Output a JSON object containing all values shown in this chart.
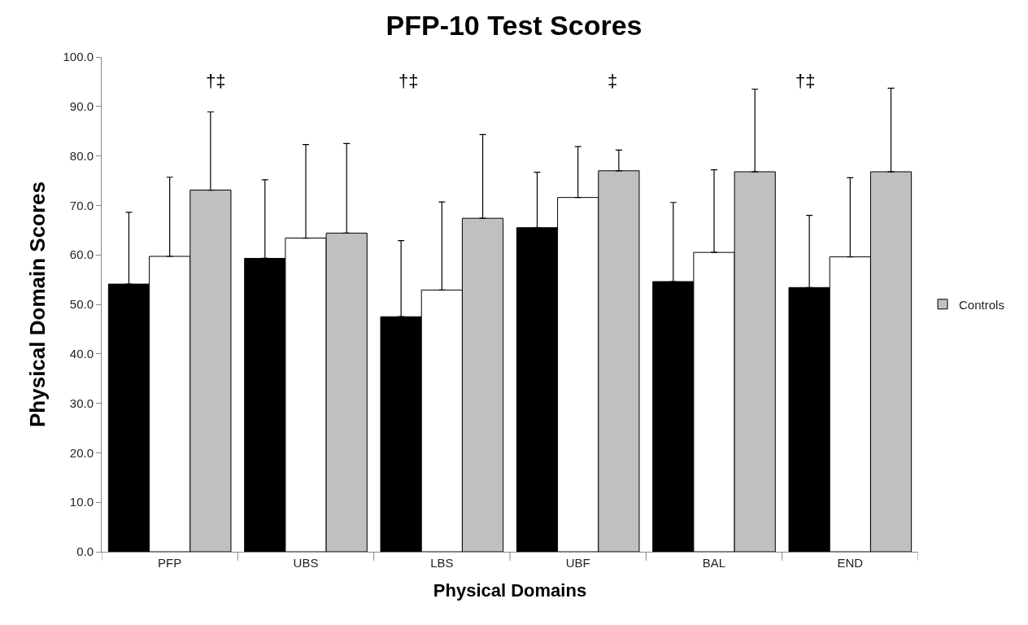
{
  "chart_data": {
    "type": "bar",
    "title": "PFP-10 Test Scores",
    "xlabel": "Physical Domains",
    "ylabel": "Physical Domain Scores",
    "categories": [
      "PFP",
      "UBS",
      "LBS",
      "UBF",
      "BAL",
      "END"
    ],
    "series": [
      {
        "color": "#000000",
        "values": [
          54.1,
          59.3,
          47.5,
          65.5,
          54.6,
          53.4
        ],
        "errors": [
          [
            54.1,
            68.6
          ],
          [
            59.3,
            75.2
          ],
          [
            47.5,
            62.9
          ],
          [
            65.5,
            76.7
          ],
          [
            54.6,
            70.6
          ],
          [
            53.4,
            68.0
          ]
        ]
      },
      {
        "color": "#ffffff",
        "values": [
          59.7,
          63.4,
          52.9,
          71.6,
          60.5,
          59.6
        ],
        "errors": [
          [
            59.7,
            75.7
          ],
          [
            63.4,
            82.3
          ],
          [
            52.9,
            70.7
          ],
          [
            71.6,
            81.9
          ],
          [
            60.5,
            77.2
          ],
          [
            59.6,
            75.6
          ]
        ]
      },
      {
        "name": "Controls",
        "color": "#c0c0c0",
        "values": [
          73.1,
          64.4,
          67.4,
          77.0,
          76.8,
          76.8
        ],
        "errors": [
          [
            73.1,
            88.9
          ],
          [
            64.4,
            82.5
          ],
          [
            67.4,
            84.3
          ],
          [
            77.0,
            81.2
          ],
          [
            76.8,
            93.5
          ],
          [
            76.8,
            93.7
          ]
        ]
      }
    ],
    "ylim": [
      0,
      100
    ],
    "yticks": [
      {
        "value": 0,
        "label": "0.0"
      },
      {
        "value": 10,
        "label": "10.0"
      },
      {
        "value": 20,
        "label": "20.0"
      },
      {
        "value": 30,
        "label": "30.0"
      },
      {
        "value": 40,
        "label": "40.0"
      },
      {
        "value": 50,
        "label": "50.0"
      },
      {
        "value": 60,
        "label": "60.0"
      },
      {
        "value": 70,
        "label": "70.0"
      },
      {
        "value": 80,
        "label": "80.0"
      },
      {
        "value": 90,
        "label": "90.0"
      },
      {
        "value": 100,
        "label": "100.0"
      }
    ],
    "annotations": [
      "†‡",
      "†‡",
      "‡",
      "†‡"
    ],
    "grid": false,
    "legend": "right"
  }
}
